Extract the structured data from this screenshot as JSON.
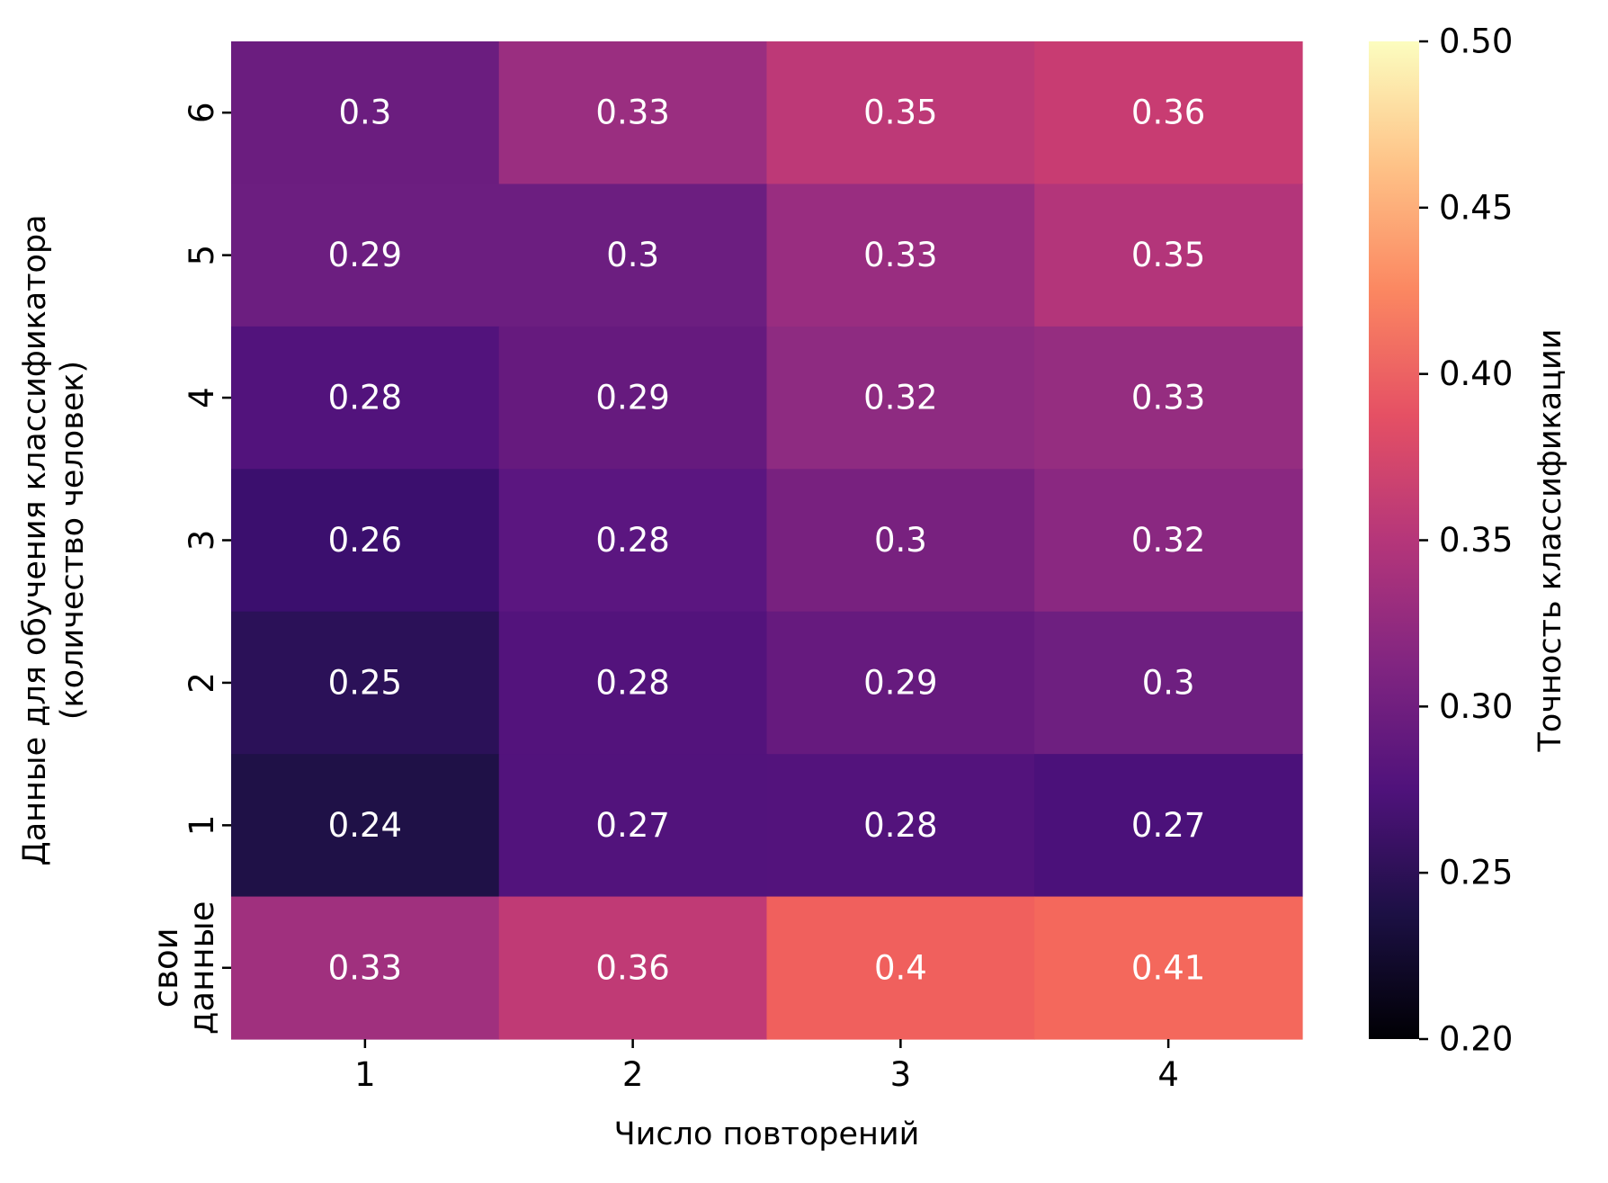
{
  "chart_data": {
    "type": "heatmap",
    "title": "",
    "xlabel": "Число повторений",
    "ylabel_lines": [
      "Данные для обучения классификатора",
      "(количество человек)"
    ],
    "x_categories": [
      "1",
      "2",
      "3",
      "4"
    ],
    "y_categories_top_to_bottom": [
      "6",
      "5",
      "4",
      "3",
      "2",
      "1",
      "свои данные"
    ],
    "y_tick_lines": {
      "свои данные": [
        "свои",
        "данные"
      ]
    },
    "values": [
      [
        "0.3",
        "0.33",
        "0.35",
        "0.36"
      ],
      [
        "0.29",
        "0.3",
        "0.33",
        "0.35"
      ],
      [
        "0.28",
        "0.29",
        "0.32",
        "0.33"
      ],
      [
        "0.26",
        "0.28",
        "0.3",
        "0.32"
      ],
      [
        "0.25",
        "0.28",
        "0.29",
        "0.3"
      ],
      [
        "0.24",
        "0.27",
        "0.28",
        "0.27"
      ],
      [
        "0.33",
        "0.36",
        "0.4",
        "0.41"
      ]
    ],
    "cell_colors": [
      [
        "#6b1d7f",
        "#9a2e80",
        "#bd3977",
        "#c83c72"
      ],
      [
        "#6c1e80",
        "#6c1e80",
        "#992d80",
        "#b3357a"
      ],
      [
        "#52137c",
        "#661a7e",
        "#8e2b81",
        "#952d80"
      ],
      [
        "#3b0f6e",
        "#5b1680",
        "#78217f",
        "#8a2881"
      ],
      [
        "#2b1158",
        "#53137c",
        "#661a7e",
        "#6e1f80"
      ],
      [
        "#1f1147",
        "#52137c",
        "#53137c",
        "#4b117a"
      ],
      [
        "#a0307e",
        "#c03a75",
        "#f0605d",
        "#f4685c"
      ]
    ],
    "colormap": "magma",
    "colorbar": {
      "label": "Точность классификации",
      "range": [
        0.2,
        0.5
      ],
      "ticks": [
        "0.20",
        "0.25",
        "0.30",
        "0.35",
        "0.40",
        "0.45",
        "0.50"
      ],
      "gradient_stops": [
        "#000004",
        "#1c1044",
        "#4f127b",
        "#812581",
        "#b5367a",
        "#e55064",
        "#fb8761",
        "#fec287",
        "#fcfdbf"
      ]
    },
    "annotation_color": "#ffffff"
  }
}
